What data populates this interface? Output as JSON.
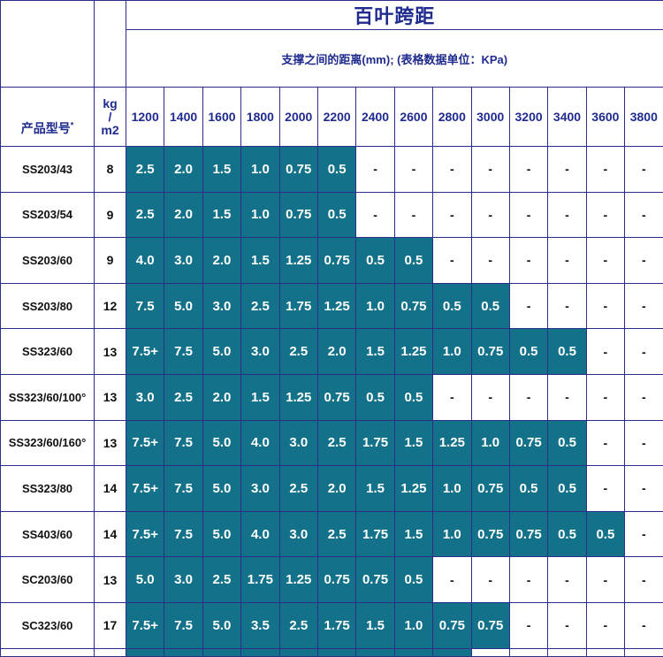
{
  "title": "百叶跨距",
  "subtitle": "支撑之间的距离(mm); (表格数据单位：KPa)",
  "headers": {
    "model": "产品型号",
    "model_mark": "*",
    "kg_line1": "kg",
    "kg_line2": "/",
    "kg_line3": "m2",
    "spans": [
      "1200",
      "1400",
      "1600",
      "1800",
      "2000",
      "2200",
      "2400",
      "2600",
      "2800",
      "3000",
      "3200",
      "3400",
      "3600",
      "3800"
    ]
  },
  "colors": {
    "filled": "#13728a",
    "border": "#2b2f8a",
    "header_text": "#1f2b8f"
  },
  "rows": [
    {
      "model": "SS203/43",
      "kg": "8",
      "values": [
        "2.5",
        "2.0",
        "1.5",
        "1.0",
        "0.75",
        "0.5",
        "-",
        "-",
        "-",
        "-",
        "-",
        "-",
        "-",
        "-"
      ]
    },
    {
      "model": "SS203/54",
      "kg": "9",
      "values": [
        "2.5",
        "2.0",
        "1.5",
        "1.0",
        "0.75",
        "0.5",
        "-",
        "-",
        "-",
        "-",
        "-",
        "-",
        "-",
        "-"
      ]
    },
    {
      "model": "SS203/60",
      "kg": "9",
      "values": [
        "4.0",
        "3.0",
        "2.0",
        "1.5",
        "1.25",
        "0.75",
        "0.5",
        "0.5",
        "-",
        "-",
        "-",
        "-",
        "-",
        "-"
      ]
    },
    {
      "model": "SS203/80",
      "kg": "12",
      "values": [
        "7.5",
        "5.0",
        "3.0",
        "2.5",
        "1.75",
        "1.25",
        "1.0",
        "0.75",
        "0.5",
        "0.5",
        "-",
        "-",
        "-",
        "-"
      ]
    },
    {
      "model": "SS323/60",
      "kg": "13",
      "values": [
        "7.5+",
        "7.5",
        "5.0",
        "3.0",
        "2.5",
        "2.0",
        "1.5",
        "1.25",
        "1.0",
        "0.75",
        "0.5",
        "0.5",
        "-",
        "-"
      ]
    },
    {
      "model": "SS323/60/100°",
      "kg": "13",
      "values": [
        "3.0",
        "2.5",
        "2.0",
        "1.5",
        "1.25",
        "0.75",
        "0.5",
        "0.5",
        "-",
        "-",
        "-",
        "-",
        "-",
        "-"
      ]
    },
    {
      "model": "SS323/60/160°",
      "kg": "13",
      "values": [
        "7.5+",
        "7.5",
        "5.0",
        "4.0",
        "3.0",
        "2.5",
        "1.75",
        "1.5",
        "1.25",
        "1.0",
        "0.75",
        "0.5",
        "-",
        "-"
      ]
    },
    {
      "model": "SS323/80",
      "kg": "14",
      "values": [
        "7.5+",
        "7.5",
        "5.0",
        "3.0",
        "2.5",
        "2.0",
        "1.5",
        "1.25",
        "1.0",
        "0.75",
        "0.5",
        "0.5",
        "-",
        "-"
      ]
    },
    {
      "model": "SS403/60",
      "kg": "14",
      "values": [
        "7.5+",
        "7.5",
        "5.0",
        "4.0",
        "3.0",
        "2.5",
        "1.75",
        "1.5",
        "1.0",
        "0.75",
        "0.75",
        "0.5",
        "0.5",
        "-"
      ]
    },
    {
      "model": "SC203/60",
      "kg": "13",
      "values": [
        "5.0",
        "3.0",
        "2.5",
        "1.75",
        "1.25",
        "0.75",
        "0.75",
        "0.5",
        "-",
        "-",
        "-",
        "-",
        "-",
        "-"
      ]
    },
    {
      "model": "SC323/60",
      "kg": "17",
      "values": [
        "7.5+",
        "7.5",
        "5.0",
        "3.5",
        "2.5",
        "1.75",
        "1.5",
        "1.0",
        "0.75",
        "0.75",
        "-",
        "-",
        "-",
        "-"
      ]
    }
  ]
}
